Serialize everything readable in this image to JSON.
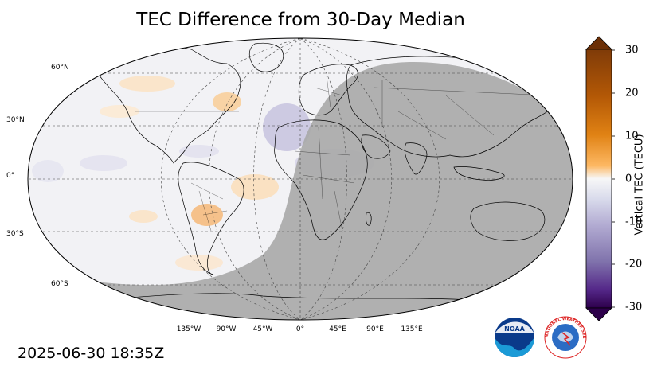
{
  "title": "TEC Difference from 30-Day Median",
  "timestamp": "2025-06-30 18:35Z",
  "map": {
    "projection": "Robinson",
    "lat_labels": [
      "60°N",
      "30°N",
      "0°",
      "30°S",
      "60°S"
    ],
    "lon_labels": [
      "135°W",
      "90°W",
      "45°W",
      "0°",
      "45°E",
      "90°E",
      "135°E"
    ],
    "night_shading": true,
    "features": [
      "coastlines",
      "country-borders",
      "graticule"
    ]
  },
  "colorbar": {
    "label": "Vertical TEC (TECU)",
    "ticks": [
      "30",
      "20",
      "10",
      "0",
      "-10",
      "-20",
      "-30"
    ],
    "min": -30,
    "max": 30,
    "colors": {
      "high": "#7f3b08",
      "mid_high": "#e08214",
      "light_high": "#fdb863",
      "zero": "#f7f7f7",
      "light_low": "#b2abd2",
      "mid_low": "#8073ac",
      "low": "#2d004b"
    }
  },
  "logos": [
    {
      "icon": "noaa-logo",
      "text": "NOAA"
    },
    {
      "icon": "nws-logo",
      "text": "NATIONAL WEATHER SERVICE"
    }
  ]
}
